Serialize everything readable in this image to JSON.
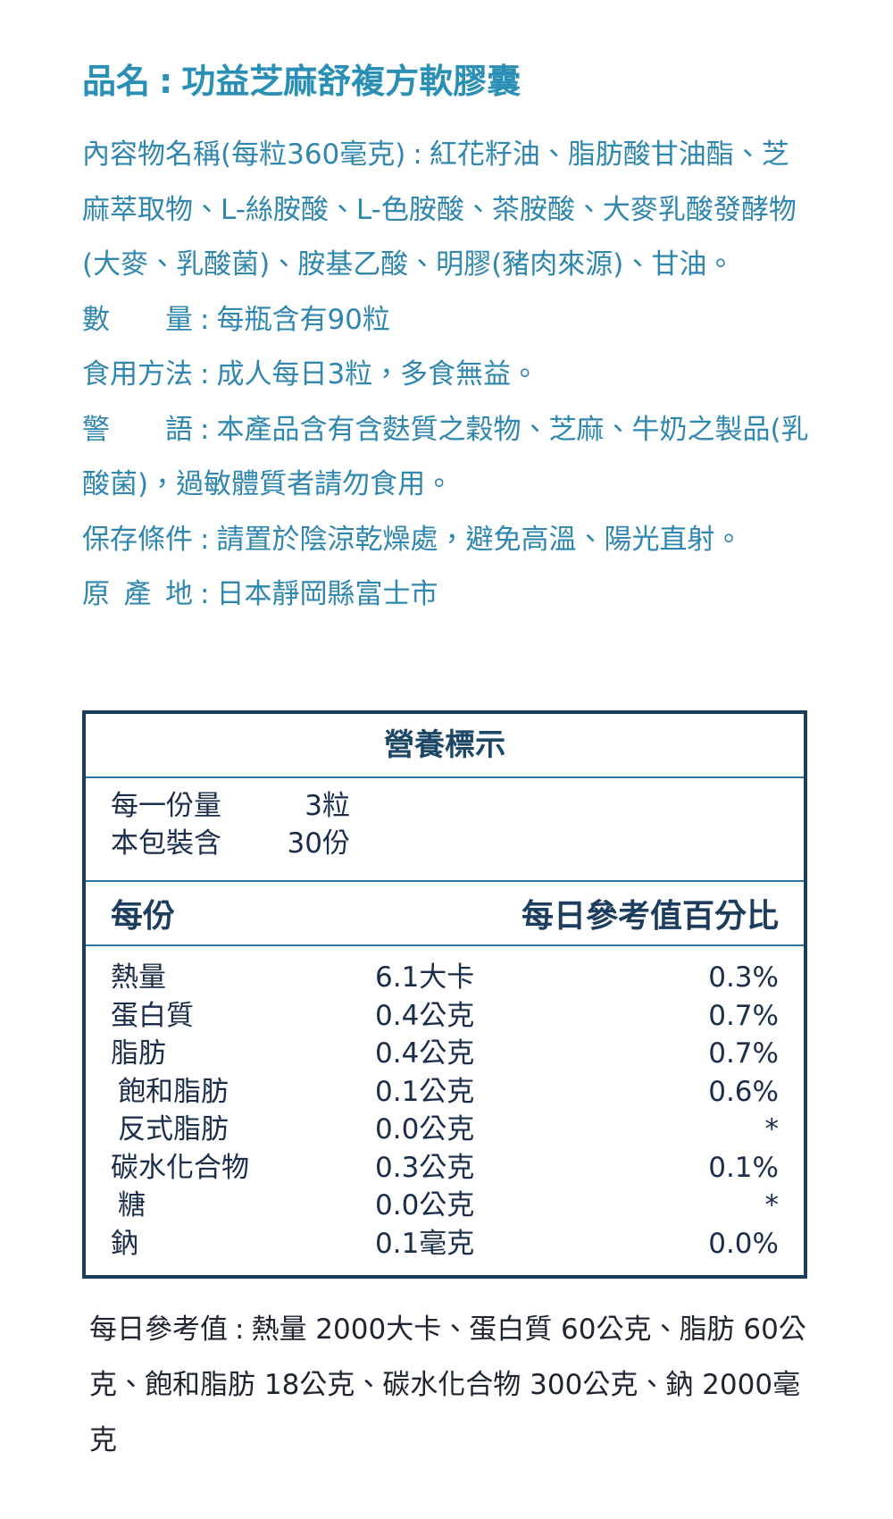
{
  "header": {
    "label": "品名",
    "separator": ":",
    "value": "功益芝麻舒複方軟膠囊"
  },
  "separator": ":",
  "info": [
    {
      "label": "內容物名稱(每粒360毫克)",
      "value": "紅花籽油、脂肪酸甘油酯、芝麻萃取物、L-絲胺酸、L-色胺酸、茶胺酸、大麥乳酸發酵物(大麥、乳酸菌)、胺基乙酸、明膠(豬肉來源)、甘油。",
      "justify": false
    },
    {
      "label": "數量",
      "value": "每瓶含有90粒",
      "justify": true
    },
    {
      "label": "食用方法",
      "value": "成人每日3粒，多食無益。",
      "justify": true
    },
    {
      "label": "警語",
      "value": "本產品含有含麩質之穀物、芝麻、牛奶之製品(乳酸菌)，過敏體質者請勿食用。",
      "justify": true
    },
    {
      "label": "保存條件",
      "value": "請置於陰涼乾燥處，避免高溫、陽光直射。",
      "justify": true
    },
    {
      "label": "原產地",
      "value": "日本靜岡縣富士市",
      "justify": true
    }
  ],
  "nutrition": {
    "title": "營養標示",
    "serving": [
      [
        "每一份量",
        "3粒"
      ],
      [
        "本包裝含",
        "30份"
      ]
    ],
    "header": [
      "每份",
      "每日參考值百分比"
    ],
    "rows": [
      {
        "name": "熱量",
        "amount": "6.1大卡",
        "percent": "0.3%",
        "sub": false
      },
      {
        "name": "蛋白質",
        "amount": "0.4公克",
        "percent": "0.7%",
        "sub": false
      },
      {
        "name": "脂肪",
        "amount": "0.4公克",
        "percent": "0.7%",
        "sub": false
      },
      {
        "name": "飽和脂肪",
        "amount": "0.1公克",
        "percent": "0.6%",
        "sub": true
      },
      {
        "name": "反式脂肪",
        "amount": "0.0公克",
        "percent": "*",
        "sub": true
      },
      {
        "name": "碳水化合物",
        "amount": "0.3公克",
        "percent": "0.1%",
        "sub": false
      },
      {
        "name": "糖",
        "amount": "0.0公克",
        "percent": "*",
        "sub": true
      },
      {
        "name": "鈉",
        "amount": "0.1毫克",
        "percent": "0.0%",
        "sub": false
      }
    ]
  },
  "footnote": {
    "label": "每日參考值",
    "separator": ":",
    "text": "熱量 2000大卡、蛋白質 60公克、脂肪 60公克、飽和脂肪 18公克、碳水化合物 300公克、鈉 2000毫克"
  }
}
